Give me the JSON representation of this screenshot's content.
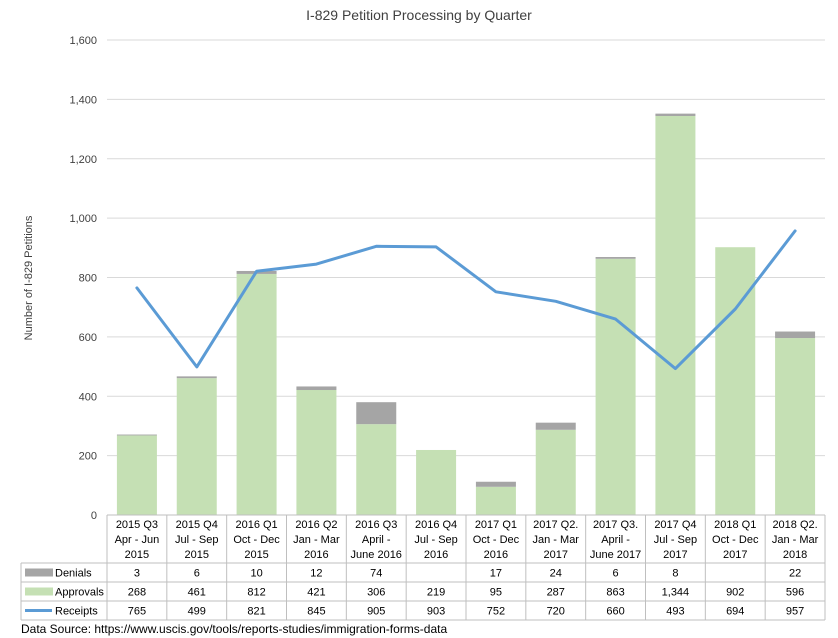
{
  "chart_data": {
    "type": "bar",
    "title": "I-829 Petition Processing by Quarter",
    "ylabel": "Number  of I-829 Petitions",
    "ylim": [
      0,
      1600
    ],
    "yticks": [
      "0",
      "200",
      "400",
      "600",
      "800",
      "1,000",
      "1,200",
      "1,400",
      "1,600"
    ],
    "yticks_values": [
      0,
      200,
      400,
      600,
      800,
      1000,
      1200,
      1400,
      1600
    ],
    "grid": true,
    "categories": [
      [
        "2015 Q3",
        "Apr - Jun",
        "2015"
      ],
      [
        "2015 Q4",
        "Jul - Sep",
        "2015"
      ],
      [
        "2016 Q1",
        "Oct - Dec",
        "2015"
      ],
      [
        "2016 Q2",
        "Jan - Mar",
        "2016"
      ],
      [
        "2016 Q3",
        "April -",
        "June 2016"
      ],
      [
        "2016 Q4",
        "Jul - Sep",
        "2016"
      ],
      [
        "2017 Q1",
        "Oct - Dec",
        "2016"
      ],
      [
        "2017 Q2.",
        "Jan - Mar",
        "2017"
      ],
      [
        "2017 Q3.",
        "April -",
        "June 2017"
      ],
      [
        "2017 Q4",
        "Jul - Sep",
        "2017"
      ],
      [
        "2018 Q1",
        "Oct - Dec",
        "2017"
      ],
      [
        "2018 Q2.",
        "Jan - Mar",
        "2018"
      ]
    ],
    "series": [
      {
        "name": "Denials",
        "kind": "stacked-bar",
        "color": "#a5a5a5",
        "values": [
          3,
          6,
          10,
          12,
          74,
          null,
          17,
          24,
          6,
          8,
          null,
          22
        ],
        "labels": [
          "3",
          "6",
          "10",
          "12",
          "74",
          "",
          "17",
          "24",
          "6",
          "8",
          "",
          "22"
        ]
      },
      {
        "name": "Approvals",
        "kind": "stacked-bar",
        "color": "#c5e0b4",
        "values": [
          268,
          461,
          812,
          421,
          306,
          219,
          95,
          287,
          863,
          1344,
          902,
          596
        ],
        "labels": [
          "268",
          "461",
          "812",
          "421",
          "306",
          "219",
          "95",
          "287",
          "863",
          "1,344",
          "902",
          "596"
        ]
      },
      {
        "name": "Receipts",
        "kind": "line",
        "color": "#5b9bd5",
        "values": [
          765,
          499,
          821,
          845,
          905,
          903,
          752,
          720,
          660,
          493,
          694,
          957
        ],
        "labels": [
          "765",
          "499",
          "821",
          "845",
          "905",
          "903",
          "752",
          "720",
          "660",
          "493",
          "694",
          "957"
        ]
      }
    ]
  },
  "footer": {
    "source": "Data Source: https://www.uscis.gov/tools/reports-studies/immigration-forms-data"
  }
}
